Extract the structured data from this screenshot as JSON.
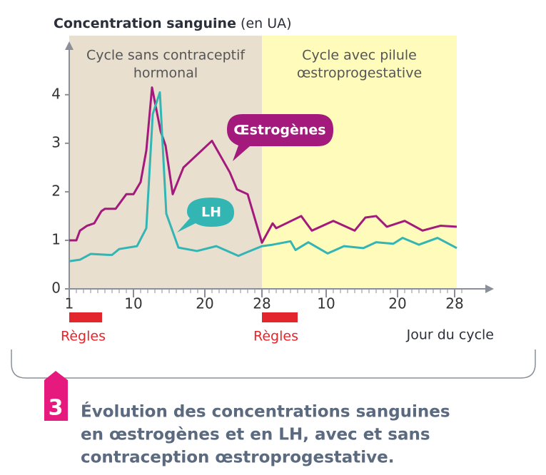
{
  "chart_data": {
    "type": "line",
    "y_label": "Concentration sanguine",
    "y_label_unit": "(en UA)",
    "x_label": "Jour du cycle",
    "xlim": [
      1,
      60.3
    ],
    "ylim": [
      0,
      5.07
    ],
    "yticks": [
      0,
      1,
      2,
      3,
      4
    ],
    "xticks": [
      1,
      10,
      20,
      28,
      {
        "value": 37,
        "label": "10"
      },
      {
        "value": 47,
        "label": "20"
      },
      {
        "value": 55,
        "label": "28"
      }
    ],
    "regions": [
      {
        "label": [
          "Cycle sans contraceptif",
          "hormonal"
        ],
        "start": 1,
        "end": 28,
        "color": "#e8dfcf"
      },
      {
        "label": [
          "Cycle avec pilule",
          "œstroprogestative"
        ],
        "start": 28,
        "end": 55.3,
        "color": "#fefbbb"
      }
    ],
    "periods": [
      {
        "label": "Règles",
        "start": 1,
        "end": 5.6
      },
      {
        "label": "Règles",
        "start": 28,
        "end": 33
      }
    ],
    "period_color": "#e3262c",
    "series": [
      {
        "name": "Œstrogènes",
        "color": "#a3197c",
        "x": [
          1,
          2,
          2.5,
          3.5,
          4.5,
          5.5,
          6,
          7.5,
          9,
          10,
          11,
          11.8,
          12.6,
          13.8,
          14.5,
          15.5,
          17,
          21,
          23.5,
          24.5,
          26,
          28,
          29.5,
          30,
          33.5,
          35,
          38,
          41,
          42.5,
          44,
          45.5,
          48,
          50.5,
          53,
          55.3
        ],
        "values": [
          1.0,
          1.0,
          1.2,
          1.3,
          1.35,
          1.6,
          1.65,
          1.65,
          1.95,
          1.95,
          2.2,
          2.85,
          4.15,
          3.25,
          2.95,
          1.95,
          2.5,
          3.05,
          2.4,
          2.05,
          1.95,
          0.95,
          1.35,
          1.25,
          1.5,
          1.2,
          1.4,
          1.2,
          1.47,
          1.5,
          1.28,
          1.4,
          1.2,
          1.3,
          1.28
        ]
      },
      {
        "name": "LH",
        "color": "#33b5b4",
        "x": [
          1,
          2.5,
          4,
          6.5,
          7,
          8,
          10.5,
          11.8,
          12.7,
          13.7,
          14.6,
          16.3,
          18.9,
          21.6,
          24.7,
          26,
          28,
          29.5,
          32,
          32.7,
          34.5,
          37.2,
          39.5,
          42.2,
          44,
          46.4,
          47.7,
          50,
          52.6,
          55.3
        ],
        "values": [
          0.57,
          0.6,
          0.72,
          0.7,
          0.7,
          0.82,
          0.88,
          1.25,
          3.6,
          4.05,
          1.55,
          0.85,
          0.78,
          0.88,
          0.68,
          0.76,
          0.88,
          0.91,
          0.98,
          0.8,
          0.96,
          0.73,
          0.88,
          0.84,
          0.96,
          0.93,
          1.05,
          0.91,
          1.05,
          0.84
        ]
      }
    ]
  },
  "figure": {
    "number": "3",
    "caption": [
      "Évolution des concentrations sanguines",
      "en œstrogènes et en LH, avec et sans",
      "contraception œstroprogestative."
    ]
  }
}
